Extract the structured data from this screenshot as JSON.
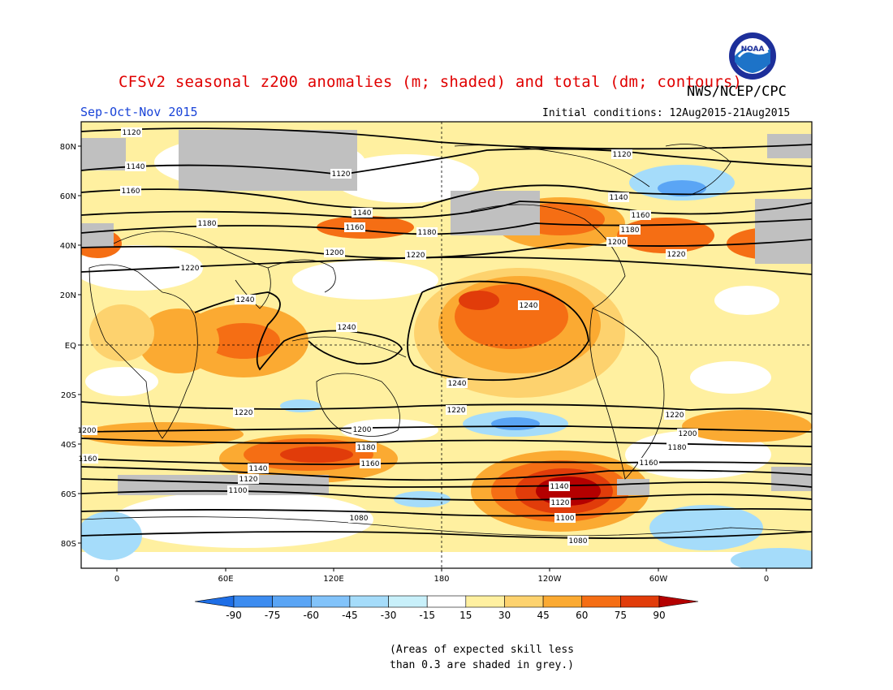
{
  "header": {
    "title": "CFSv2 seasonal z200 anomalies (m; shaded) and total (dm; contours)",
    "agency": "NWS/NCEP/CPC",
    "season": "Sep-Oct-Nov 2015",
    "initial_conditions": "Initial conditions: 12Aug2015-21Aug2015",
    "logo_text": "NOAA"
  },
  "axes": {
    "lat_labels": [
      "80N",
      "60N",
      "40N",
      "20N",
      "EQ",
      "20S",
      "40S",
      "60S",
      "80S"
    ],
    "lon_labels": [
      "0",
      "60E",
      "120E",
      "180",
      "120W",
      "60W",
      "0"
    ]
  },
  "colorbar": {
    "labels": [
      "-90",
      "-75",
      "-60",
      "-45",
      "-30",
      "-15",
      "15",
      "30",
      "45",
      "60",
      "75",
      "90"
    ],
    "colors": [
      "#1e6ee6",
      "#3c8cf0",
      "#5aa5f5",
      "#82c3fa",
      "#a5dcfa",
      "#c8f0fa",
      "#ffffff",
      "#fff0a0",
      "#fdd26e",
      "#fbaa32",
      "#f56e14",
      "#e13c0a",
      "#b40000"
    ]
  },
  "contours": {
    "labels": [
      "1120",
      "1140",
      "1160",
      "1180",
      "1200",
      "1220",
      "1240",
      "1080",
      "1100"
    ]
  },
  "map_colors": {
    "grey_low_skill": "#c0c0c0",
    "contour": "#000000"
  },
  "note": {
    "line1": "(Areas of expected skill less",
    "line2": "than 0.3 are shaded in grey.)"
  }
}
